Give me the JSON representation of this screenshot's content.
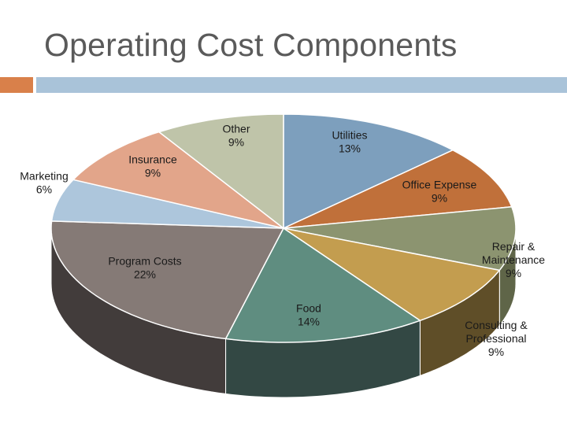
{
  "slide": {
    "title": "Operating Cost Components"
  },
  "colors": {
    "accent_orange": "#d9804a",
    "accent_blue": "#a9c3d9"
  },
  "chart_data": {
    "type": "pie",
    "style": "3d",
    "title": "",
    "unit": "%",
    "start": "12 o'clock",
    "direction": "clockwise",
    "slices": [
      {
        "label_lines": [
          "Utilities",
          "13%"
        ],
        "value": 13,
        "color": "#7d9fbd",
        "side": "#5a7690"
      },
      {
        "label_lines": [
          "Office Expense",
          "9%"
        ],
        "value": 9,
        "color": "#c0703a",
        "side": "#8e4f26"
      },
      {
        "label_lines": [
          "Repair &",
          "Maintenance",
          "9%"
        ],
        "value": 9,
        "color": "#8c9470",
        "side": "#5f6548"
      },
      {
        "label_lines": [
          "Consulting &",
          "Professional",
          "9%"
        ],
        "value": 9,
        "color": "#c39d4f",
        "side": "#5f4e28"
      },
      {
        "label_lines": [
          "Food",
          "14%"
        ],
        "value": 14,
        "color": "#5f8d80",
        "side": "#334844"
      },
      {
        "label_lines": [
          "Program Costs",
          "22%"
        ],
        "value": 22,
        "color": "#857a76",
        "side": "#423c3b"
      },
      {
        "label_lines": [
          "Marketing",
          "6%"
        ],
        "value": 6,
        "color": "#adc6dc",
        "side": "#6b8598"
      },
      {
        "label_lines": [
          "Insurance",
          "9%"
        ],
        "value": 9,
        "color": "#e2a58a",
        "side": "#9c6b55"
      },
      {
        "label_lines": [
          "Other",
          "9%"
        ],
        "value": 9,
        "color": "#bfc4a9",
        "side": "#7f846b"
      }
    ]
  }
}
